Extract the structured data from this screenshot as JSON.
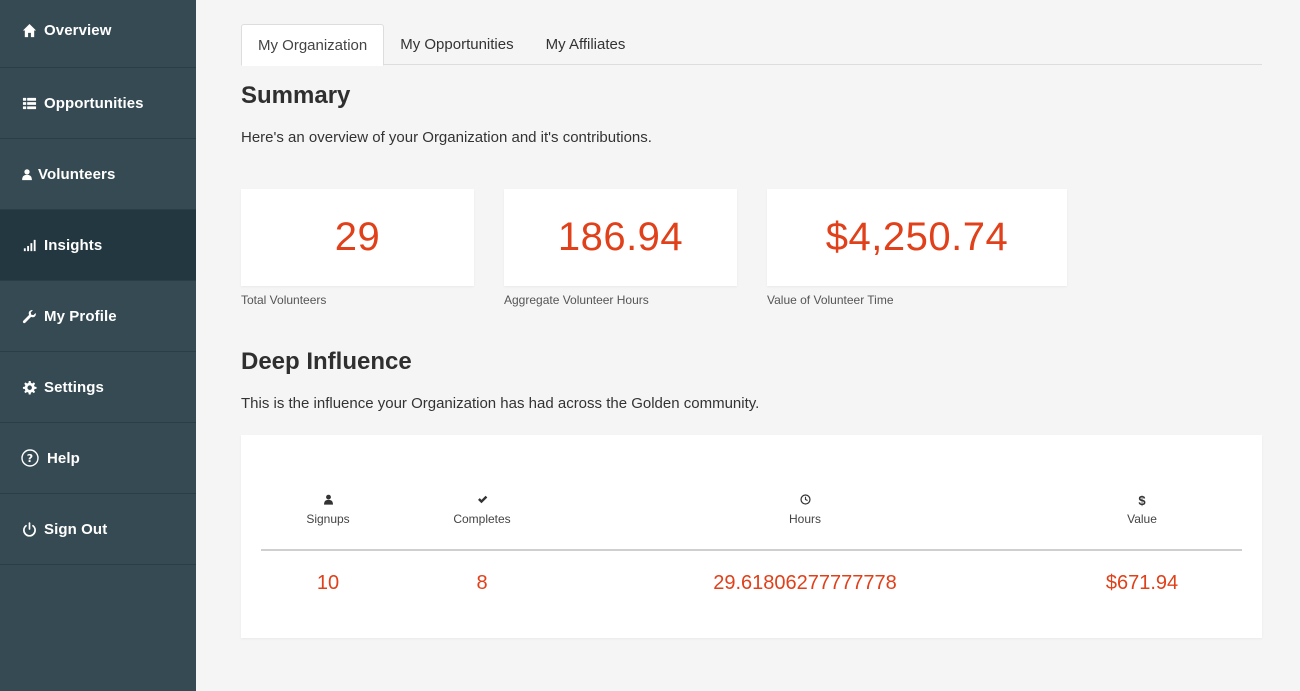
{
  "sidebar": {
    "items": [
      {
        "label": "Overview",
        "icon": "home-icon"
      },
      {
        "label": "Opportunities",
        "icon": "list-icon"
      },
      {
        "label": "Volunteers",
        "icon": "user-icon"
      },
      {
        "label": "Insights",
        "icon": "bar-chart-icon",
        "active": true
      },
      {
        "label": "My Profile",
        "icon": "wrench-icon"
      },
      {
        "label": "Settings",
        "icon": "gear-icon"
      },
      {
        "label": "Help",
        "icon": "question-circle-icon"
      },
      {
        "label": "Sign Out",
        "icon": "power-icon"
      }
    ]
  },
  "tabs": [
    {
      "label": "My Organization",
      "active": true
    },
    {
      "label": "My Opportunities"
    },
    {
      "label": "My Affiliates"
    }
  ],
  "summary": {
    "title": "Summary",
    "description": "Here's an overview of your Organization and it's contributions.",
    "stats": [
      {
        "value": "29",
        "label": "Total Volunteers"
      },
      {
        "value": "186.94",
        "label": "Aggregate Volunteer Hours"
      },
      {
        "value": "$4,250.74",
        "label": "Value of Volunteer Time"
      }
    ]
  },
  "influence": {
    "title": "Deep Influence",
    "description": "This is the influence your Organization has had across the Golden community.",
    "columns": [
      {
        "label": "Signups",
        "icon": "user-icon",
        "value": "10"
      },
      {
        "label": "Completes",
        "icon": "checkmark-icon",
        "value": "8"
      },
      {
        "label": "Hours",
        "icon": "clock-icon",
        "value": "29.61806277777778"
      },
      {
        "label": "Value",
        "icon": "dollar-icon",
        "value": "$671.94"
      }
    ]
  },
  "colors": {
    "sidebar_bg": "#354a52",
    "sidebar_active": "#233740",
    "accent": "#e0401a",
    "page_bg": "#f5f5f5"
  }
}
